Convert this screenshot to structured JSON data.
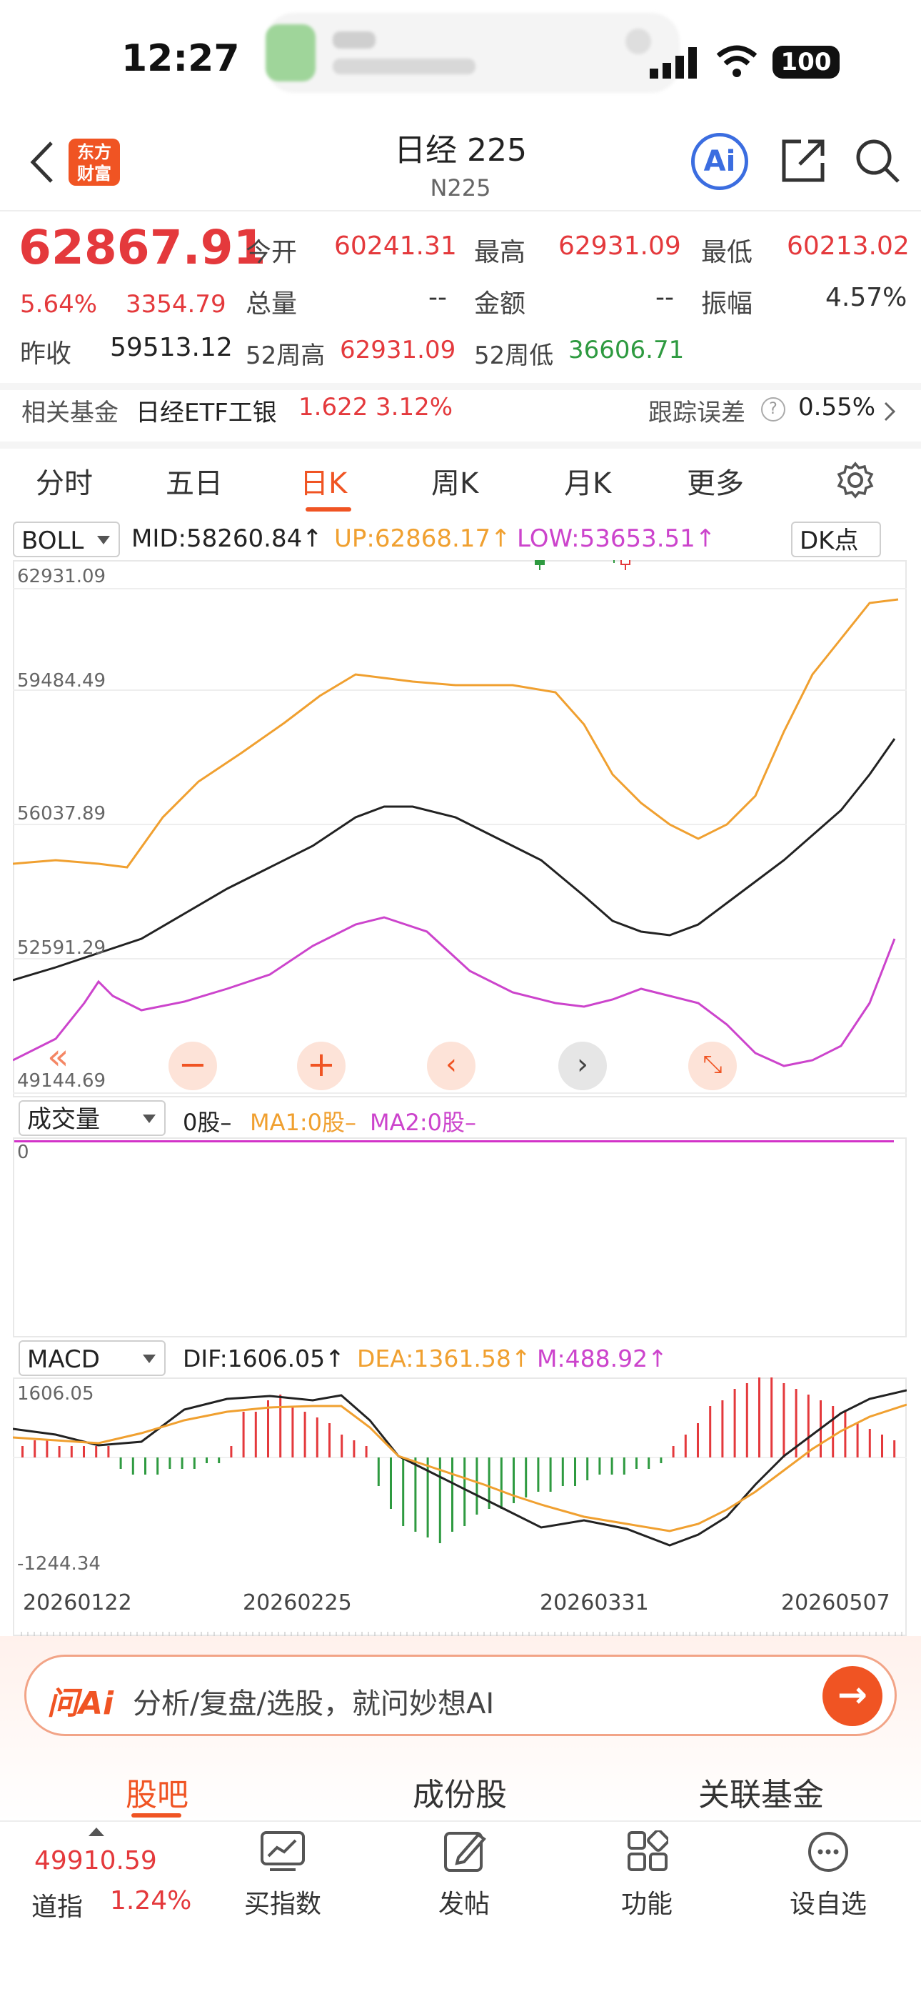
{
  "status": {
    "time": "12:27",
    "battery": "100"
  },
  "header": {
    "logo_line1": "东方",
    "logo_line2": "财富",
    "title": "日经 225",
    "subtitle": "N225",
    "ai_label": "Ai"
  },
  "quote": {
    "price": "62867.91",
    "change_pct": "5.64%",
    "change": "3354.79",
    "prev_close_label": "昨收",
    "prev_close": "59513.12",
    "open_label": "今开",
    "open": "60241.31",
    "high_label": "最高",
    "high": "62931.09",
    "low_label": "最低",
    "low": "60213.02",
    "volume_label": "总量",
    "volume": "--",
    "amount_label": "金额",
    "amount": "--",
    "amplitude_label": "振幅",
    "amplitude": "4.57%",
    "wk52_high_label": "52周高",
    "wk52_high": "62931.09",
    "wk52_low_label": "52周低",
    "wk52_low": "36606.71"
  },
  "fund": {
    "label": "相关基金",
    "name": "日经ETF工银",
    "price": "1.622",
    "pct": "3.12%",
    "tracking_label": "跟踪误差",
    "tracking_value": "0.55%"
  },
  "tabs": [
    "分时",
    "五日",
    "日K",
    "周K",
    "月K",
    "更多"
  ],
  "active_tab": "日K",
  "boll": {
    "selector": "BOLL",
    "mid": "MID:58260.84",
    "up": "UP:62868.17",
    "low": "LOW:53653.51",
    "dk": "DK点",
    "axis": [
      "62931.09",
      "59484.49",
      "56037.89",
      "52591.29",
      "49144.69"
    ]
  },
  "volume": {
    "selector": "成交量",
    "value": "0股",
    "ma1": "MA1:0股",
    "ma2": "MA2:0股",
    "axis_zero": "0"
  },
  "macd": {
    "selector": "MACD",
    "dif": "DIF:1606.05",
    "dea": "DEA:1361.58",
    "m": "M:488.92",
    "axis_top": "1606.05",
    "axis_bottom": "-1244.34",
    "dates": [
      "20260122",
      "20260225",
      "20260331",
      "20260507"
    ]
  },
  "ai_bar": {
    "logo": "问Ai",
    "prompt": "分析/复盘/选股，就问妙想AI"
  },
  "subtabs": [
    "股吧",
    "成份股",
    "关联基金"
  ],
  "bottom": {
    "dji_value": "49910.59",
    "dji_name": "道指",
    "dji_pct": "1.24%",
    "nav": [
      "买指数",
      "发帖",
      "功能",
      "设自选"
    ]
  },
  "colors": {
    "up": "#e4393c",
    "down": "#2e9a40",
    "accent": "#f05423",
    "mid_line": "#222222",
    "up_line": "#f0a030",
    "low_line": "#cc44cc"
  }
}
